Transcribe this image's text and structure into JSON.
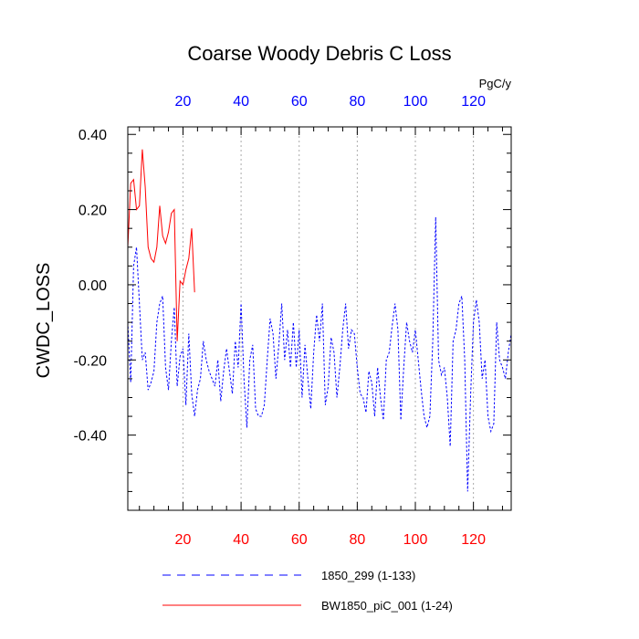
{
  "chart_data": {
    "type": "line",
    "title": "Coarse Woody Debris C Loss",
    "ylabel": "CWDC_LOSS",
    "xlabel": "",
    "units_label": "PgC/y",
    "xlim": [
      1,
      133
    ],
    "ylim": [
      -0.6,
      0.42
    ],
    "x_ticks": [
      20,
      40,
      60,
      80,
      100,
      120
    ],
    "y_ticks": [
      0.4,
      0.2,
      0.0,
      -0.2,
      -0.4
    ],
    "y_tick_labels": [
      "0.40",
      "0.20",
      "0.00",
      "-0.20",
      "-0.40"
    ],
    "x_tick_labels": [
      "20",
      "40",
      "60",
      "80",
      "100",
      "120"
    ],
    "top_axis_color": "#0000ff",
    "bottom_axis_color": "#ff0000",
    "grid": "vertical dotted at major x ticks",
    "series": [
      {
        "name": "1850_299 (1-133)",
        "color": "#0000ff",
        "style": "dashed",
        "x_start": 1,
        "values": [
          -0.1,
          -0.26,
          0.05,
          0.1,
          -0.05,
          -0.2,
          -0.18,
          -0.28,
          -0.26,
          -0.23,
          -0.1,
          -0.05,
          -0.03,
          -0.22,
          -0.28,
          -0.15,
          -0.06,
          -0.27,
          -0.19,
          -0.17,
          -0.32,
          -0.13,
          -0.29,
          -0.35,
          -0.28,
          -0.25,
          -0.15,
          -0.2,
          -0.23,
          -0.25,
          -0.27,
          -0.2,
          -0.31,
          -0.23,
          -0.17,
          -0.23,
          -0.29,
          -0.15,
          -0.22,
          -0.05,
          -0.25,
          -0.38,
          -0.2,
          -0.16,
          -0.33,
          -0.35,
          -0.35,
          -0.32,
          -0.2,
          -0.09,
          -0.13,
          -0.25,
          -0.16,
          -0.05,
          -0.2,
          -0.12,
          -0.22,
          -0.1,
          -0.22,
          -0.12,
          -0.3,
          -0.16,
          -0.25,
          -0.33,
          -0.18,
          -0.08,
          -0.15,
          -0.05,
          -0.32,
          -0.27,
          -0.14,
          -0.18,
          -0.3,
          -0.22,
          -0.12,
          -0.05,
          -0.17,
          -0.12,
          -0.13,
          -0.22,
          -0.29,
          -0.3,
          -0.34,
          -0.23,
          -0.26,
          -0.35,
          -0.22,
          -0.3,
          -0.36,
          -0.2,
          -0.18,
          -0.11,
          -0.05,
          -0.12,
          -0.36,
          -0.22,
          -0.1,
          -0.15,
          -0.18,
          -0.12,
          -0.2,
          -0.28,
          -0.35,
          -0.38,
          -0.35,
          -0.15,
          0.18,
          -0.2,
          -0.24,
          -0.22,
          -0.3,
          -0.43,
          -0.15,
          -0.12,
          -0.05,
          -0.03,
          -0.2,
          -0.55,
          -0.3,
          -0.1,
          -0.04,
          -0.1,
          -0.25,
          -0.2,
          -0.35,
          -0.39,
          -0.37,
          -0.1,
          -0.2,
          -0.22,
          -0.25,
          -0.18,
          -0.13
        ]
      },
      {
        "name": "BW1850_piC_001 (1-24)",
        "color": "#ff0000",
        "style": "solid",
        "x_start": 1,
        "values": [
          0.1,
          0.27,
          0.28,
          0.2,
          0.21,
          0.36,
          0.26,
          0.1,
          0.07,
          0.06,
          0.1,
          0.21,
          0.13,
          0.11,
          0.14,
          0.19,
          0.2,
          -0.15,
          0.01,
          0.0,
          0.04,
          0.07,
          0.15,
          -0.02
        ]
      }
    ]
  },
  "legend": {
    "entries": [
      {
        "label": "1850_299 (1-133)",
        "color": "#0000ff",
        "style": "dashed"
      },
      {
        "label": "BW1850_piC_001 (1-24)",
        "color": "#ff0000",
        "style": "solid"
      }
    ]
  }
}
